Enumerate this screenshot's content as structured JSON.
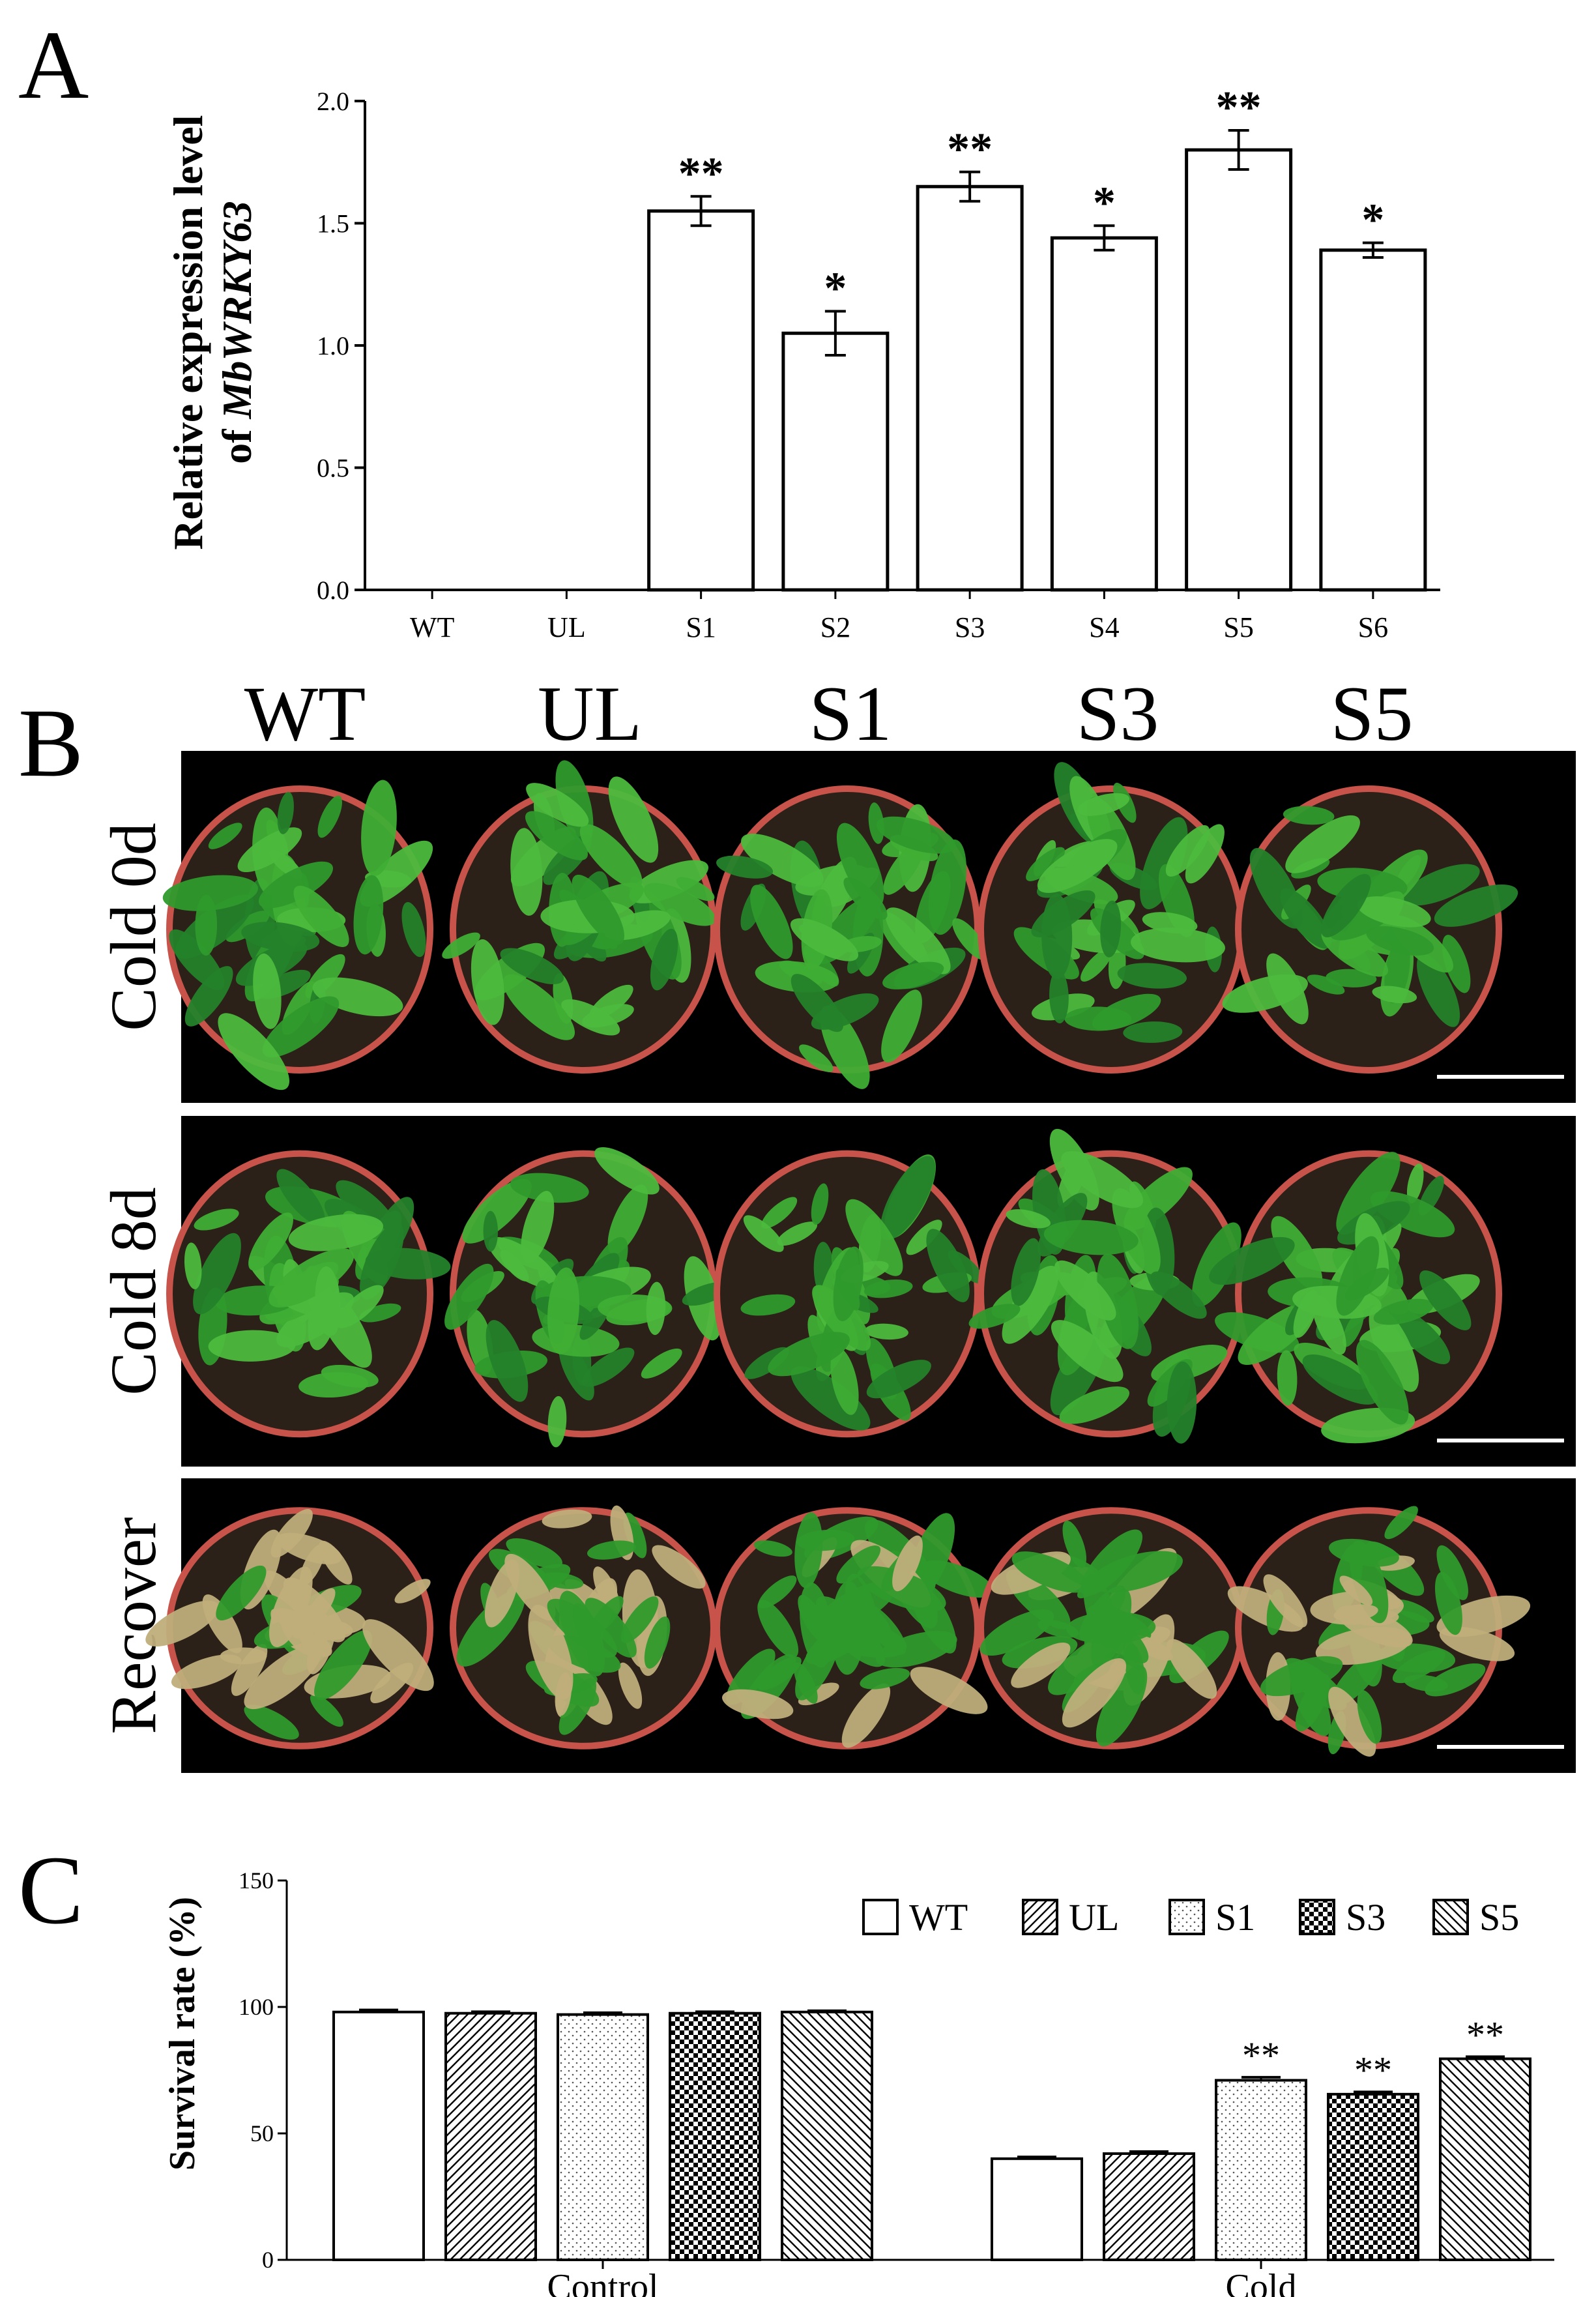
{
  "panel_labels": [
    "A",
    "B",
    "C"
  ],
  "chart_data": [
    {
      "panel": "A",
      "type": "bar",
      "ylabel_line1": "Relative expression level",
      "ylabel_line2_prefix": "of ",
      "ylabel_line2_gene": "MbWRKY63",
      "ylim": [
        0,
        2.0
      ],
      "yticks": [
        "0.0",
        "0.5",
        "1.0",
        "1.5",
        "2.0"
      ],
      "ytick_values": [
        0,
        0.5,
        1.0,
        1.5,
        2.0
      ],
      "categories": [
        "WT",
        "UL",
        "S1",
        "S2",
        "S3",
        "S4",
        "S5",
        "S6"
      ],
      "values": [
        0,
        0,
        1.55,
        1.05,
        1.65,
        1.44,
        1.8,
        1.39
      ],
      "errors": [
        0,
        0,
        0.06,
        0.09,
        0.06,
        0.05,
        0.08,
        0.03
      ],
      "significance": [
        "",
        "",
        "**",
        "*",
        "**",
        "*",
        "**",
        "*"
      ],
      "bar_fill": "#ffffff",
      "bar_stroke": "#000000"
    },
    {
      "panel": "C",
      "type": "bar",
      "ylabel": "Survival rate (%)",
      "ylim": [
        0,
        150
      ],
      "yticks": [
        "0",
        "50",
        "100",
        "150"
      ],
      "ytick_values": [
        0,
        50,
        100,
        150
      ],
      "categories": [
        "Control",
        "Cold"
      ],
      "legend_position": "top-right",
      "series": [
        {
          "name": "WT",
          "pattern": "plain",
          "values": [
            98,
            40
          ],
          "errors": [
            0.8,
            0.7
          ],
          "significance": [
            "",
            ""
          ]
        },
        {
          "name": "UL",
          "pattern": "diag-fwd",
          "values": [
            97.5,
            42
          ],
          "errors": [
            0.6,
            0.8
          ],
          "significance": [
            "",
            ""
          ]
        },
        {
          "name": "S1",
          "pattern": "dots",
          "values": [
            97,
            71
          ],
          "errors": [
            0.7,
            1.2
          ],
          "significance": [
            "",
            "**"
          ]
        },
        {
          "name": "S3",
          "pattern": "checker",
          "values": [
            97.5,
            65.5
          ],
          "errors": [
            0.6,
            0.9
          ],
          "significance": [
            "",
            "**"
          ]
        },
        {
          "name": "S5",
          "pattern": "diag-back",
          "values": [
            98,
            79.5
          ],
          "errors": [
            0.5,
            0.8
          ],
          "significance": [
            "",
            "**"
          ]
        }
      ]
    }
  ],
  "photo_panel": {
    "column_labels": [
      "WT",
      "UL",
      "S1",
      "S3",
      "S5"
    ],
    "row_labels": [
      "Cold 0d",
      "Cold 8d",
      "Recover"
    ],
    "background": "#000000",
    "pot_color": "#c8534a",
    "soil_color": "#2b2118",
    "leaf_color_healthy": "#2f9a2c",
    "leaf_color_damaged": "#bfae7a",
    "scale_bar_color": "#ffffff"
  }
}
